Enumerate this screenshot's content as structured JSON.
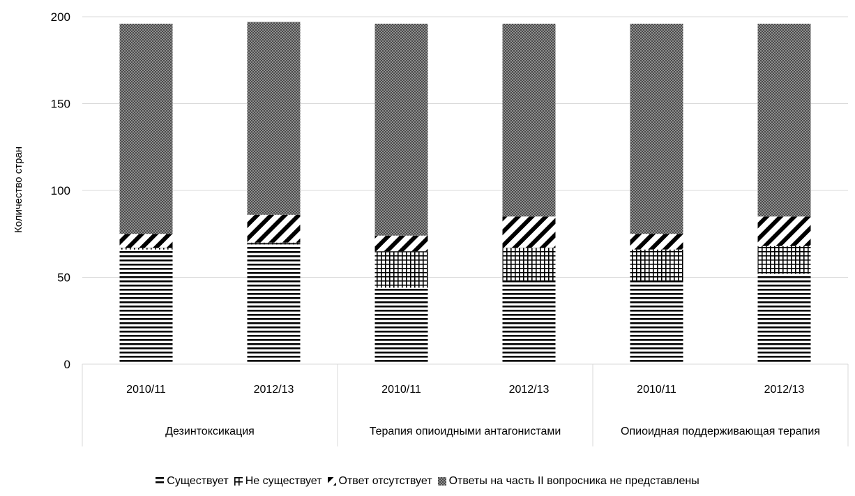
{
  "chart_data": {
    "type": "bar",
    "stacked": true,
    "ylabel": "Количество стран",
    "ylim": [
      0,
      200
    ],
    "yticks": [
      0,
      50,
      100,
      150,
      200
    ],
    "grid": true,
    "legend_position": "bottom",
    "groups": [
      {
        "label": "Дезинтоксикация",
        "categories": [
          "2010/11",
          "2012/13"
        ]
      },
      {
        "label": "Терапия опиоидными антагонистами",
        "categories": [
          "2010/11",
          "2012/13"
        ]
      },
      {
        "label": "Опиоидная поддерживающая терапия",
        "categories": [
          "2010/11",
          "2012/13"
        ]
      }
    ],
    "categories": [
      "2010/11",
      "2012/13",
      "2010/11",
      "2012/13",
      "2010/11",
      "2012/13"
    ],
    "series": [
      {
        "name": "Существует",
        "pattern": "horizontal-lines",
        "values": [
          66,
          69,
          44,
          48,
          48,
          52
        ]
      },
      {
        "name": "Не существует",
        "pattern": "grid",
        "values": [
          1,
          1,
          21,
          19,
          18,
          16
        ]
      },
      {
        "name": "Ответ отсутствует",
        "pattern": "diagonal-lines",
        "values": [
          8,
          16,
          9,
          18,
          9,
          17
        ]
      },
      {
        "name": "Ответы на часть II вопросника не представлены",
        "pattern": "checker",
        "values": [
          121,
          111,
          122,
          111,
          121,
          111
        ]
      }
    ]
  }
}
